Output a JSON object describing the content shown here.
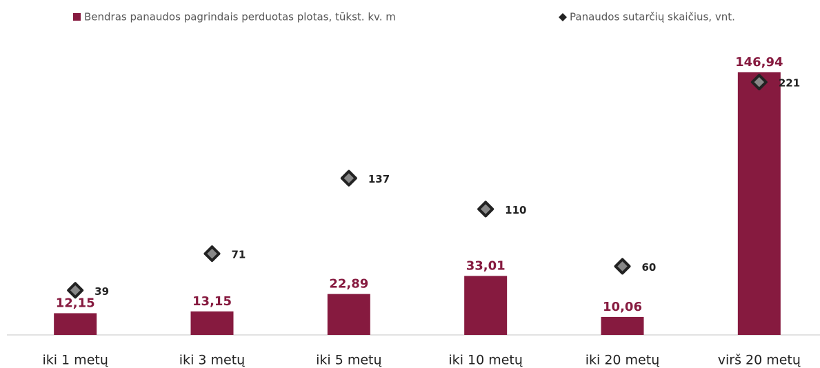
{
  "chart_data": {
    "type": "bar",
    "categories": [
      "iki 1 metų",
      "iki 3 metų",
      "iki 5 metų",
      "iki 10 metų",
      "iki 20 metų",
      "virš 20 metų"
    ],
    "series": [
      {
        "name": "Bendras panaudos pagrindais perduotas plotas, tūkst. kv. m",
        "type": "bar",
        "color": "#861a3f",
        "values": [
          12.15,
          13.15,
          22.89,
          33.01,
          10.06,
          146.94
        ],
        "value_labels": [
          "12,15",
          "13,15",
          "22,89",
          "33,01",
          "10,06",
          "146,94"
        ]
      },
      {
        "name": "Panaudos sutarčių skaičius, vnt.",
        "type": "scatter",
        "axis": "y2",
        "color": "#888888",
        "values": [
          39,
          71,
          137,
          110,
          60,
          221
        ]
      }
    ],
    "ylim": [
      0,
      160
    ],
    "y2lim": [
      0,
      250
    ]
  }
}
